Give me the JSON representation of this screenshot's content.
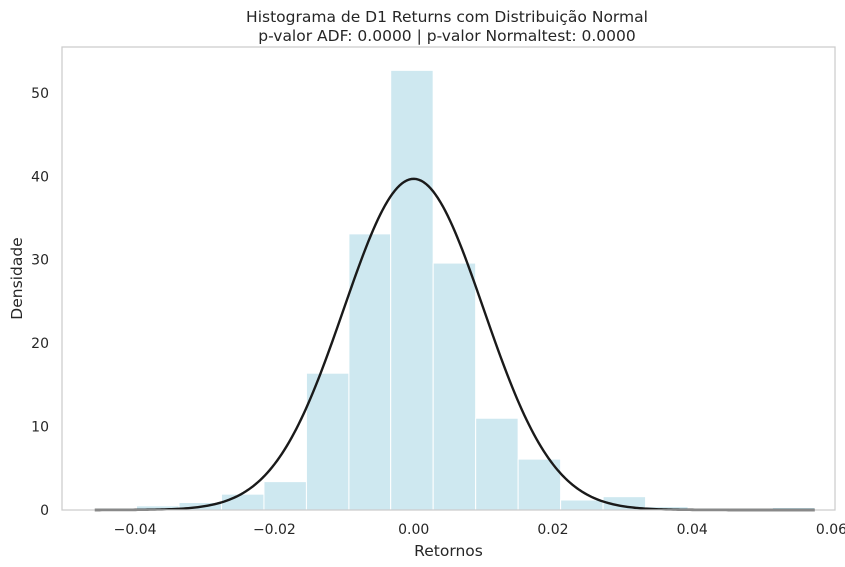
{
  "chart_data": {
    "type": "bar",
    "title": "Histograma de D1 Returns com Distribuição Normal",
    "subtitle": "p-valor ADF: 0.0000 | p-valor Normaltest: 0.0000",
    "xlabel": "Retornos",
    "ylabel": "Densidade",
    "xlim": [
      -0.0505,
      0.0605
    ],
    "ylim": [
      0,
      55.5
    ],
    "xticks": [
      -0.04,
      -0.02,
      0.0,
      0.02,
      0.04,
      0.06
    ],
    "xtick_labels": [
      "−0.04",
      "−0.02",
      "0.00",
      "0.02",
      "0.04",
      "0.06"
    ],
    "yticks": [
      0,
      10,
      20,
      30,
      40,
      50
    ],
    "ytick_labels": [
      "0",
      "10",
      "20",
      "30",
      "40",
      "50"
    ],
    "grid": false,
    "bin_edges": [
      -0.0458,
      -0.0398,
      -0.0337,
      -0.0276,
      -0.0215,
      -0.0154,
      -0.0093,
      -0.0033,
      0.0028,
      0.0089,
      0.015,
      0.0211,
      0.0272,
      0.0333,
      0.0394,
      0.0454,
      0.0515,
      0.0576
    ],
    "densities": [
      0.2,
      0.5,
      0.9,
      1.9,
      3.4,
      16.4,
      33.1,
      52.7,
      29.6,
      11.0,
      6.1,
      1.2,
      1.6,
      0.4,
      0.2,
      0.2,
      0.3
    ],
    "normal_curve": {
      "mean": 0.0,
      "std": 0.01005,
      "x_range": [
        -0.0458,
        0.0576
      ]
    },
    "bar_color": "#add8e6",
    "bar_alpha": 0.6,
    "curve_color": "#1a1a1a"
  }
}
